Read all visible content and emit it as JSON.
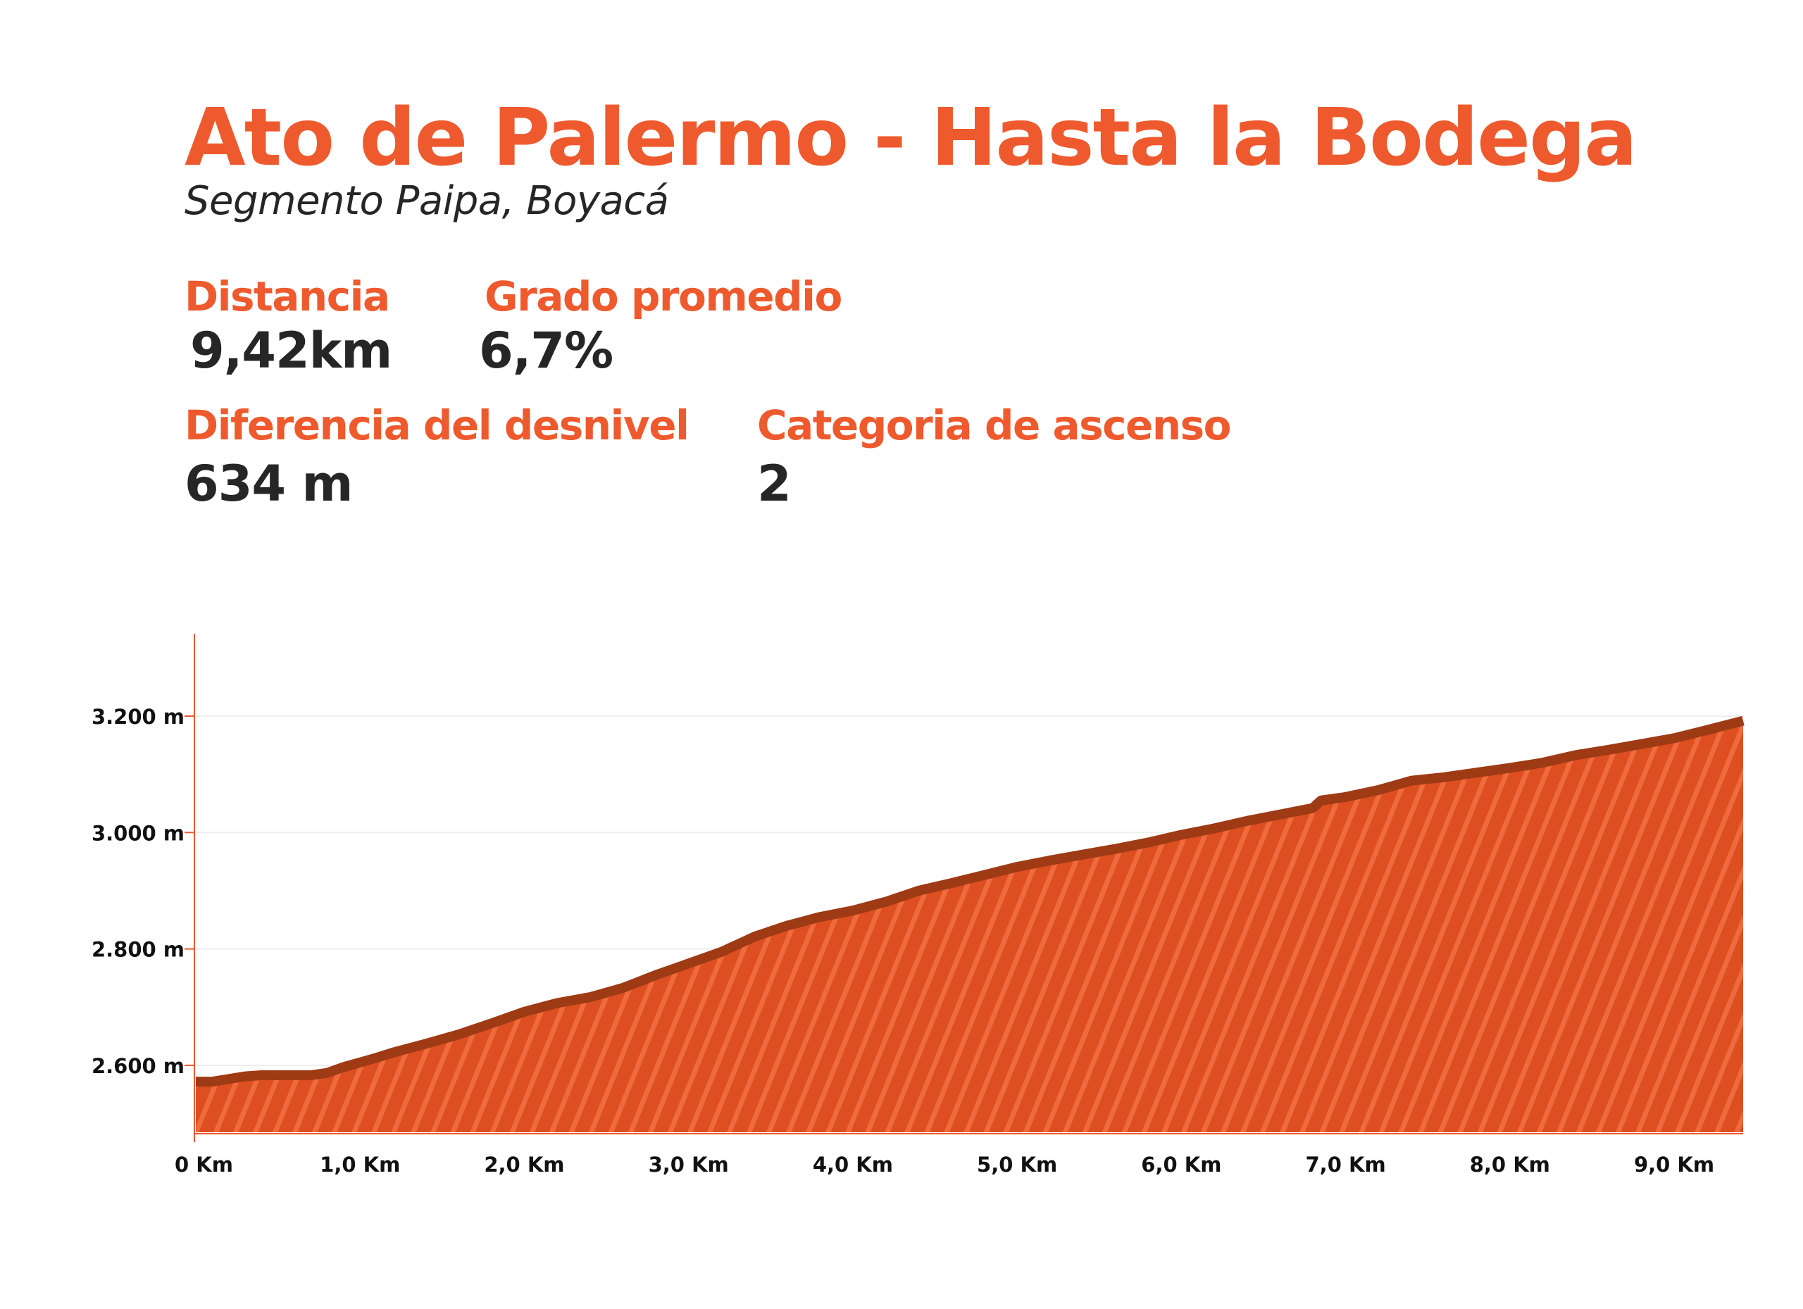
{
  "header": {
    "title": "Ato de Palermo - Hasta la Bodega",
    "subtitle": "Segmento Paipa, Boyacá"
  },
  "stats": {
    "distance_label": "Distancia",
    "distance_value": "9,42km",
    "grade_label": "Grado promedio",
    "grade_value": "6,7%",
    "elevation_label": "Diferencia del desnivel",
    "elevation_value": "634 m",
    "category_label": "Categoria de ascenso",
    "category_value": "2"
  },
  "colors": {
    "accent": "#ee5a2d",
    "fill": "#dd4e20",
    "fill_stripe": "#ef6a3c",
    "outline": "#9e3a14",
    "axis": "#e55a35",
    "grid": "#eeeeee",
    "text": "#262626"
  },
  "chart_data": {
    "type": "area",
    "xlabel": "",
    "ylabel": "",
    "xlim": [
      0,
      9.42
    ],
    "ylim": [
      2485,
      3275
    ],
    "grid": true,
    "x_ticks": [
      {
        "value": 0,
        "label": "0 Km"
      },
      {
        "value": 1,
        "label": "1,0 Km"
      },
      {
        "value": 2,
        "label": "2,0 Km"
      },
      {
        "value": 3,
        "label": "3,0 Km"
      },
      {
        "value": 4,
        "label": "4,0 Km"
      },
      {
        "value": 5,
        "label": "5,0 Km"
      },
      {
        "value": 6,
        "label": "6,0 Km"
      },
      {
        "value": 7,
        "label": "7,0 Km"
      },
      {
        "value": 8,
        "label": "8,0 Km"
      },
      {
        "value": 9,
        "label": "9,0 Km"
      }
    ],
    "y_ticks": [
      {
        "value": 2600,
        "label": "2.600 m"
      },
      {
        "value": 2800,
        "label": "2.800 m"
      },
      {
        "value": 3000,
        "label": "3.000 m"
      },
      {
        "value": 3200,
        "label": "3.200 m"
      }
    ],
    "x": [
      0,
      0.1,
      0.3,
      0.4,
      0.5,
      0.7,
      0.8,
      0.9,
      1.0,
      1.1,
      1.2,
      1.4,
      1.6,
      1.8,
      2.0,
      2.2,
      2.4,
      2.6,
      2.8,
      3.0,
      3.2,
      3.4,
      3.6,
      3.8,
      4.0,
      4.2,
      4.4,
      4.6,
      4.8,
      5.0,
      5.2,
      5.4,
      5.6,
      5.8,
      6.0,
      6.2,
      6.4,
      6.6,
      6.8,
      6.85,
      7.0,
      7.2,
      7.4,
      7.6,
      7.8,
      8.0,
      8.2,
      8.4,
      8.6,
      8.8,
      9.0,
      9.2,
      9.42
    ],
    "y": [
      2572,
      2572,
      2581,
      2583,
      2583,
      2583,
      2587,
      2597,
      2605,
      2613,
      2622,
      2637,
      2653,
      2672,
      2692,
      2707,
      2717,
      2733,
      2755,
      2775,
      2795,
      2821,
      2840,
      2855,
      2866,
      2881,
      2900,
      2913,
      2927,
      2941,
      2952,
      2962,
      2972,
      2983,
      2996,
      3007,
      3020,
      3031,
      3042,
      3055,
      3061,
      3073,
      3089,
      3095,
      3103,
      3111,
      3120,
      3133,
      3142,
      3152,
      3162,
      3176,
      3192
    ]
  }
}
